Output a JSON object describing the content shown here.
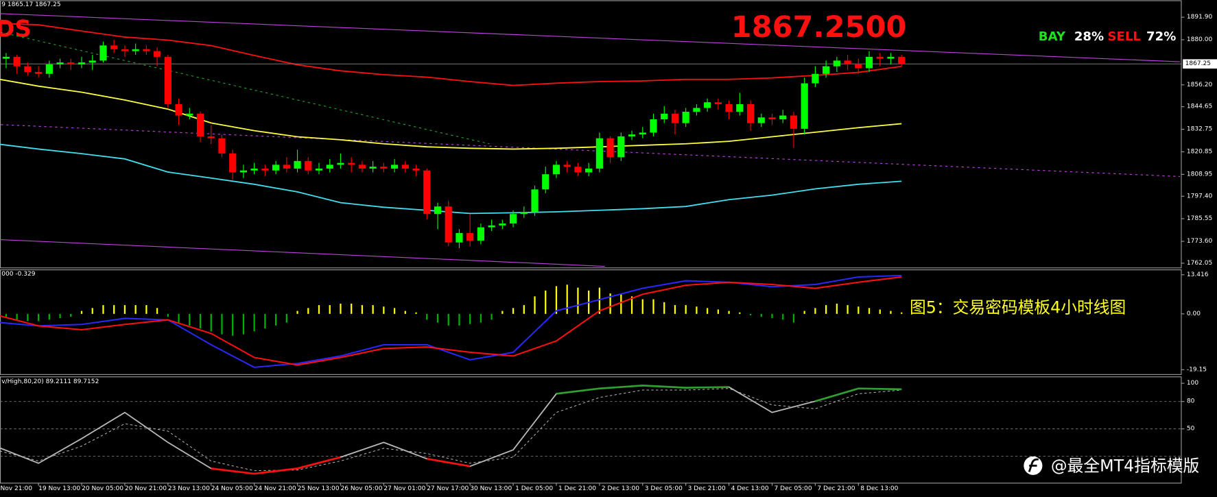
{
  "chart_data": [
    {
      "type": "candlestick",
      "title": "1867.2500",
      "symbol": "DS",
      "header": "9 1865.17 1867.25",
      "signal": {
        "buy_label": "BAY",
        "buy_value": "28%",
        "sell_label": "SELL",
        "sell_value": "72%"
      },
      "categories": [
        "Nov 21:00",
        null,
        null,
        null,
        "19 Nov 13:00",
        null,
        null,
        null,
        "20 Nov 05:00",
        null,
        null,
        null,
        "20 Nov 21:00",
        null,
        null,
        null,
        "23 Nov 13:00",
        null,
        null,
        null,
        "24 Nov 05:00",
        null,
        null,
        null,
        "24 Nov 21:00",
        null,
        null,
        null,
        "25 Nov 13:00",
        null,
        null,
        null,
        "26 Nov 05:00",
        null,
        null,
        null,
        "27 Nov 01:00",
        null,
        null,
        null,
        "27 Nov 17:00",
        null,
        null,
        null,
        "30 Nov 13:00",
        null,
        null,
        null,
        "1 Dec 05:00",
        null,
        null,
        null,
        "1 Dec 21:00",
        null,
        null,
        null,
        "2 Dec 13:00",
        null,
        null,
        null,
        "3 Dec 05:00",
        null,
        null,
        null,
        "3 Dec 21:00",
        null,
        null,
        null,
        "4 Dec 13:00",
        null,
        null,
        null,
        "7 Dec 05:00",
        null,
        null,
        null,
        "7 Dec 21:00",
        null,
        null,
        null,
        "8 Dec 13:00",
        null,
        null,
        null,
        null
      ],
      "open": [
        1872,
        1870,
        1871,
        1866,
        1863,
        1862,
        1867,
        1868,
        1867,
        1868,
        1869,
        1877,
        1875,
        1874,
        1875,
        1874,
        1871,
        1846,
        1840,
        1841,
        1829,
        1828,
        1820,
        1810,
        1811,
        1812,
        1811,
        1814,
        1812,
        1816,
        1811,
        1812,
        1814,
        1815,
        1814,
        1812,
        1813,
        1812,
        1814,
        1812,
        1811,
        1788,
        1792,
        1773,
        1778,
        1774,
        1781,
        1782,
        1783,
        1788,
        1789,
        1801,
        1809,
        1814,
        1813,
        1810,
        1812,
        1828,
        1818,
        1829,
        1830,
        1831,
        1838,
        1841,
        1836,
        1842,
        1844,
        1847,
        1846,
        1842,
        1846,
        1836,
        1839,
        1838,
        1840,
        1833,
        1857,
        1862,
        1866,
        1869,
        1867,
        1865,
        1871,
        1870,
        1871
      ],
      "high": [
        1874,
        1873,
        1872,
        1868,
        1866,
        1869,
        1870,
        1870,
        1871,
        1872,
        1879,
        1880,
        1877,
        1878,
        1877,
        1876,
        1872,
        1849,
        1844,
        1842,
        1835,
        1830,
        1822,
        1814,
        1815,
        1814,
        1816,
        1818,
        1822,
        1818,
        1815,
        1817,
        1820,
        1818,
        1816,
        1816,
        1815,
        1817,
        1816,
        1814,
        1812,
        1794,
        1795,
        1780,
        1788,
        1783,
        1785,
        1785,
        1790,
        1792,
        1803,
        1813,
        1816,
        1816,
        1815,
        1815,
        1831,
        1829,
        1831,
        1832,
        1834,
        1841,
        1845,
        1843,
        1844,
        1846,
        1849,
        1849,
        1848,
        1852,
        1848,
        1841,
        1841,
        1843,
        1842,
        1860,
        1866,
        1869,
        1871,
        1872,
        1870,
        1874,
        1873,
        1873,
        1872
      ],
      "low": [
        1868,
        1865,
        1862,
        1861,
        1860,
        1860,
        1865,
        1864,
        1865,
        1864,
        1868,
        1873,
        1871,
        1872,
        1872,
        1866,
        1844,
        1835,
        1838,
        1826,
        1825,
        1818,
        1806,
        1807,
        1809,
        1808,
        1809,
        1810,
        1810,
        1809,
        1809,
        1810,
        1812,
        1810,
        1810,
        1810,
        1810,
        1810,
        1810,
        1808,
        1785,
        1780,
        1771,
        1770,
        1771,
        1772,
        1779,
        1780,
        1781,
        1786,
        1787,
        1799,
        1807,
        1810,
        1808,
        1808,
        1810,
        1815,
        1816,
        1827,
        1828,
        1829,
        1836,
        1830,
        1834,
        1840,
        1842,
        1843,
        1838,
        1840,
        1832,
        1834,
        1835,
        1836,
        1823,
        1830,
        1855,
        1860,
        1863,
        1864,
        1862,
        1863,
        1866,
        1867,
        1866
      ],
      "close": [
        1870,
        1871,
        1866,
        1863,
        1862,
        1867,
        1868,
        1867,
        1868,
        1869,
        1877,
        1875,
        1874,
        1875,
        1874,
        1871,
        1846,
        1840,
        1841,
        1829,
        1828,
        1820,
        1810,
        1811,
        1812,
        1811,
        1814,
        1812,
        1816,
        1811,
        1812,
        1814,
        1815,
        1814,
        1812,
        1813,
        1812,
        1814,
        1812,
        1811,
        1788,
        1792,
        1773,
        1778,
        1774,
        1781,
        1782,
        1783,
        1788,
        1789,
        1801,
        1809,
        1814,
        1813,
        1810,
        1812,
        1828,
        1818,
        1829,
        1830,
        1831,
        1838,
        1841,
        1836,
        1842,
        1844,
        1847,
        1846,
        1842,
        1846,
        1836,
        1839,
        1838,
        1840,
        1833,
        1857,
        1862,
        1866,
        1869,
        1867,
        1865,
        1871,
        1870,
        1871,
        1867.25
      ],
      "up_color": "#00ff00",
      "down_color": "#ff0000",
      "last_price": {
        "value": 1867.25,
        "label": "1867.25"
      },
      "ylim": [
        1760.4,
        1900.0
      ],
      "yticks": [
        {
          "value": 1891.9,
          "label": "1891.90"
        },
        {
          "value": 1880,
          "label": "1880.00"
        },
        {
          "value": 1856.2,
          "label": "1856.20"
        },
        1844.65,
        1832.75,
        1820.85,
        1808.95,
        {
          "value": 1797.4,
          "label": "1797.40"
        },
        1785.55,
        {
          "value": 1773.6,
          "label": "1773.60"
        },
        1762.05
      ],
      "line_x": [
        0,
        4,
        8,
        12,
        16,
        20,
        24,
        28,
        32,
        36,
        40,
        44,
        48,
        52,
        56,
        60,
        64,
        68,
        72,
        76,
        80,
        84
      ],
      "lines": [
        {
          "color": "#ff1010",
          "values": [
            1888.7,
            1887.9,
            1884.6,
            1881.4,
            1879.8,
            1876.9,
            1871.7,
            1866.8,
            1863.6,
            1861.6,
            1860.3,
            1857.9,
            1855.9,
            1857.1,
            1857.9,
            1858.3,
            1859.1,
            1859.1,
            1859.9,
            1861.2,
            1862.8,
            1866.0
          ]
        },
        {
          "color": "#ffff40",
          "values": [
            1859.5,
            1855.5,
            1852.3,
            1848.2,
            1843.4,
            1836.1,
            1832.0,
            1828.8,
            1827.2,
            1825.1,
            1823.5,
            1822.7,
            1822.3,
            1822.7,
            1823.5,
            1824.3,
            1825.1,
            1826.4,
            1828.8,
            1831.2,
            1833.6,
            1835.7
          ]
        },
        {
          "color": "#40e0f0",
          "values": [
            1825.1,
            1822.3,
            1819.9,
            1817.1,
            1810.2,
            1807.0,
            1803.7,
            1799.7,
            1794.0,
            1791.6,
            1790.0,
            1788.3,
            1788.7,
            1789.2,
            1790.0,
            1790.8,
            1792.0,
            1795.6,
            1798.0,
            1801.3,
            1803.7,
            1805.3
          ]
        }
      ],
      "trendlines": [
        {
          "color": "#c040e0",
          "dash": false,
          "x": [
            0,
            109.8
          ],
          "values": [
            1893.9,
            1868.4
          ]
        },
        {
          "color": "#c040e0",
          "dash": false,
          "x": [
            0,
            56.5
          ],
          "values": [
            1774.6,
            1760.4
          ]
        },
        {
          "color": "#c040e0",
          "dash": true,
          "x": [
            0,
            109.8
          ],
          "values": [
            1835.3,
            1807.8
          ]
        },
        {
          "color": "#20a020",
          "dash": true,
          "x": [
            0,
            45.8
          ],
          "values": [
            1884.6,
            1825.1
          ]
        }
      ]
    },
    {
      "type": "macd",
      "header": "000 -0.329",
      "annotation": "图5：交易密码模板4小时线图",
      "ylim": [
        -20.4,
        14.7
      ],
      "yticks": [
        13.416,
        {
          "value": 0,
          "label": "0.00"
        },
        -19.15
      ],
      "histogram": {
        "up_color": "#ffff00",
        "down_color": "#00b000",
        "values": [
          0.5,
          -1,
          -2,
          -2.5,
          -2.5,
          -2,
          -1.5,
          -1,
          1,
          2,
          3,
          3,
          3,
          3,
          3,
          2,
          -1,
          -3,
          -4,
          -5,
          -6,
          -7,
          -7.5,
          -7,
          -6,
          -5,
          -4,
          -3,
          1,
          2,
          3,
          3,
          3.5,
          3.5,
          3,
          3,
          2.5,
          2,
          1,
          0.5,
          -2,
          -3,
          -4,
          -4,
          -3.5,
          -3,
          -2,
          1,
          2,
          3,
          6,
          8,
          9.5,
          10,
          9,
          8,
          9,
          7,
          7,
          6,
          5,
          5,
          4,
          3,
          3,
          2.5,
          2,
          1.5,
          1,
          0.5,
          -0.5,
          -1,
          -1.5,
          -2,
          -3,
          1,
          2,
          3,
          3.5,
          3,
          2.5,
          2,
          1.5,
          1,
          0.5
        ]
      },
      "line_x": [
        0,
        4,
        8,
        12,
        16,
        20,
        24,
        28,
        32,
        36,
        40,
        44,
        48,
        52,
        56,
        60,
        64,
        68,
        72,
        76,
        80,
        84
      ],
      "lines": [
        {
          "color": "#2828ff",
          "values": [
            -2.84,
            -4.13,
            -3.61,
            -1.55,
            -2.06,
            -10.58,
            -18.32,
            -17.03,
            -14.45,
            -10.58,
            -10.58,
            -15.74,
            -13.16,
            1.03,
            4.9,
            8.77,
            11.35,
            10.84,
            9.29,
            10.06,
            12.64,
            13.16
          ]
        },
        {
          "color": "#ff1010",
          "values": [
            -0.26,
            -4.13,
            -5.42,
            -3.61,
            -2.06,
            -6.71,
            -14.96,
            -17.54,
            -14.96,
            -11.87,
            -11.35,
            -13.16,
            -14.45,
            -9.29,
            1.03,
            6.71,
            9.8,
            10.84,
            10.06,
            8.77,
            10.84,
            12.64
          ]
        }
      ]
    },
    {
      "type": "stochastic",
      "header": "v/High,80,20) 89.2111 89.7152",
      "ylim": [
        -8.2,
        104.9
      ],
      "yticks": [
        100,
        80,
        50
      ],
      "levels": [
        80,
        50,
        20
      ],
      "overbought": 80,
      "oversold": 20,
      "overbought_color": "#30a030",
      "oversold_color": "#ff1010",
      "line_x": [
        0,
        4,
        8,
        12,
        16,
        20,
        24,
        28,
        32,
        36,
        40,
        44,
        48,
        52,
        56,
        60,
        64,
        68,
        72,
        76,
        80,
        84
      ],
      "main": {
        "color": "#b8b8b8",
        "values": [
          31.1,
          12.3,
          39.3,
          68.0,
          35.2,
          6.6,
          0.8,
          6.6,
          18.9,
          35.2,
          17.2,
          9.0,
          27.0,
          88.5,
          94.3,
          97.5,
          95.1,
          95.9,
          68.0,
          80.3,
          94.3,
          93.4
        ]
      },
      "signal": {
        "color": "#b8b8b8",
        "values": [
          27.0,
          14.8,
          31.1,
          55.7,
          47.5,
          14.8,
          4.1,
          4.9,
          14.8,
          28.7,
          23.0,
          12.3,
          18.9,
          68.0,
          84.4,
          92.6,
          92.6,
          94.3,
          76.2,
          72.1,
          88.5,
          92.6
        ]
      }
    }
  ],
  "watermark": "@最全MT4指标模版"
}
